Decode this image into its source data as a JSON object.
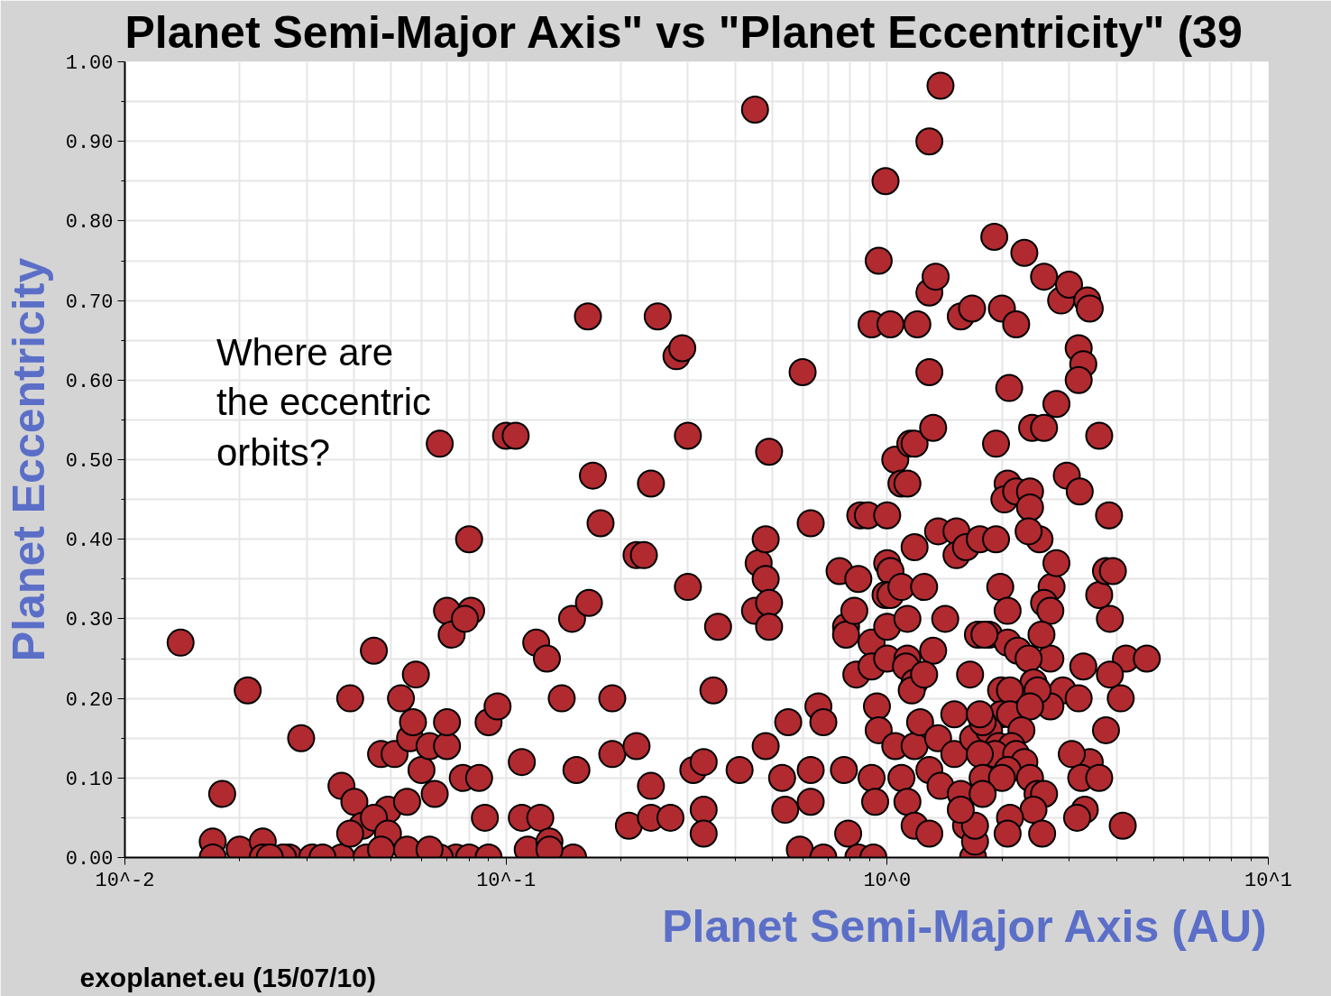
{
  "chart_data": {
    "type": "scatter",
    "title": "Planet Semi-Major Axis\"  vs \"Planet Eccentricity\" (39",
    "xlabel": "Planet Semi-Major Axis (AU)",
    "ylabel": "Planet Eccentricity",
    "annotations": [
      "Where are\nthe eccentric\norbits?",
      "exoplanet.eu (15/07/10)"
    ],
    "log": "x",
    "grid": true,
    "marker": "circle",
    "xlim": [
      0.01,
      10
    ],
    "ylim": [
      0,
      1
    ],
    "xticks": [
      {
        "value": 0.01,
        "label": "10^-2"
      },
      {
        "value": 0.1,
        "label": "10^-1"
      },
      {
        "value": 1,
        "label": "10^0"
      },
      {
        "value": 10,
        "label": "10^1"
      }
    ],
    "yticks": [
      {
        "value": 0,
        "label": "0.00"
      },
      {
        "value": 0.1,
        "label": "0.10"
      },
      {
        "value": 0.2,
        "label": "0.20"
      },
      {
        "value": 0.3,
        "label": "0.30"
      },
      {
        "value": 0.4,
        "label": "0.40"
      },
      {
        "value": 0.5,
        "label": "0.50"
      },
      {
        "value": 0.6,
        "label": "0.60"
      },
      {
        "value": 0.7,
        "label": "0.70"
      },
      {
        "value": 0.8,
        "label": "0.80"
      },
      {
        "value": 0.9,
        "label": "0.90"
      },
      {
        "value": 1,
        "label": "1.00"
      }
    ],
    "series": [
      {
        "color": "#b02a30",
        "x": [
          0.014,
          0.017,
          0.017,
          0.018,
          0.021,
          0.02,
          0.023,
          0.023,
          0.027,
          0.029,
          0.031,
          0.037,
          0.039,
          0.037,
          0.04,
          0.042,
          0.045,
          0.047,
          0.049,
          0.051,
          0.053,
          0.056,
          0.058,
          0.057,
          0.06,
          0.055,
          0.065,
          0.063,
          0.07,
          0.067,
          0.07,
          0.072,
          0.07,
          0.077,
          0.074,
          0.08,
          0.081,
          0.078,
          0.085,
          0.088,
          0.09,
          0.095,
          0.08,
          0.09,
          0.1,
          0.106,
          0.11,
          0.11,
          0.12,
          0.123,
          0.128,
          0.114,
          0.14,
          0.149,
          0.153,
          0.165,
          0.164,
          0.169,
          0.177,
          0.19,
          0.19,
          0.15,
          0.21,
          0.22,
          0.23,
          0.24,
          0.22,
          0.24,
          0.24,
          0.25,
          0.28,
          0.29,
          0.3,
          0.3,
          0.31,
          0.33,
          0.33,
          0.33,
          0.35,
          0.36,
          0.27,
          0.41,
          0.45,
          0.46,
          0.48,
          0.49,
          0.48,
          0.45,
          0.49,
          0.49,
          0.48,
          0.53,
          0.54,
          0.55,
          0.6,
          0.63,
          0.63,
          0.59,
          0.63,
          0.66,
          0.68,
          0.75,
          0.77,
          0.68,
          0.79,
          0.78,
          0.78,
          0.82,
          0.84,
          0.85,
          0.89,
          0.83,
          0.91,
          0.91,
          0.95,
          0.91,
          0.99,
          1.02,
          0.94,
          0.95,
          0.91,
          0.93,
          0.84,
          0.92,
          1.0,
          1.0,
          1.02,
          0.99,
          1.02,
          1.0,
          1.0,
          1.05,
          1.05,
          1.09,
          1.13,
          1.15,
          1.18,
          1.2,
          1.09,
          1.13,
          1.13,
          1.12,
          1.18,
          1.16,
          1.09,
          1.13,
          1.18,
          1.18,
          1.29,
          1.38,
          1.29,
          1.34,
          1.29,
          1.32,
          1.36,
          1.18,
          1.25,
          1.32,
          1.25,
          1.22,
          1.29,
          1.29,
          1.36,
          1.42,
          1.38,
          1.56,
          1.67,
          1.52,
          1.52,
          1.61,
          1.75,
          1.65,
          1.5,
          1.5,
          1.56,
          1.61,
          1.68,
          1.7,
          1.73,
          1.68,
          1.85,
          1.91,
          2.0,
          2.18,
          2.29,
          2.58,
          2.86,
          3.0,
          3.35,
          3.4,
          3.18,
          3.27,
          3.18,
          3.6,
          2.09,
          1.93,
          2.4,
          2.58,
          2.78,
          2.96,
          3.2,
          2.07,
          2.03,
          2.18,
          2.37,
          2.37,
          2.51,
          3.82,
          2.35,
          1.93,
          1.98,
          2.07,
          2.7,
          2.78,
          2.58,
          2.68,
          3.6,
          3.75,
          3.91,
          3.84,
          4.23,
          4.8,
          3.27,
          3.84,
          4.1,
          3.75,
          3.4,
          3.05,
          3.23,
          3.6,
          3.3,
          3.15,
          4.15,
          2.89,
          3.18,
          2.68,
          2.68,
          2.54,
          2.07,
          2.2,
          2.35,
          1.8,
          2.42,
          2.48,
          1.99,
          2.1,
          1.99,
          2.1,
          2.37,
          2.25,
          1.85,
          1.96,
          2.12,
          1.92,
          2.18,
          2.29,
          2.07,
          1.75,
          1.78,
          2.0,
          2.37,
          2.48,
          2.58,
          2.42,
          2.1,
          2.07,
          2.55,
          1.7,
          1.56,
          1.78,
          1.78,
          1.75,
          0.033,
          0.043,
          0.067,
          0.039,
          0.045,
          0.049,
          0.047,
          0.055,
          0.063,
          0.026,
          0.024,
          0.13,
          0.13
        ],
        "values": [
          0.27,
          0.02,
          0,
          0.08,
          0.21,
          0.01,
          0.02,
          0,
          0,
          0.15,
          0,
          0.09,
          0.2,
          0,
          0.07,
          0.04,
          0.26,
          0.13,
          0.06,
          0.13,
          0.2,
          0.15,
          0.23,
          0.17,
          0.11,
          0.07,
          0.08,
          0.14,
          0.14,
          0.52,
          0.31,
          0.28,
          0.17,
          0.1,
          0,
          0.4,
          0.31,
          0.3,
          0.1,
          0.05,
          0.17,
          0.19,
          0,
          0,
          0.53,
          0.53,
          0.12,
          0.05,
          0.27,
          0.05,
          0.25,
          0.01,
          0.2,
          0.3,
          0.11,
          0.32,
          0.68,
          0.48,
          0.42,
          0.13,
          0.2,
          0,
          0.04,
          0.38,
          0.38,
          0.47,
          0.14,
          0.09,
          0.05,
          0.68,
          0.63,
          0.64,
          0.53,
          0.34,
          0.11,
          0.12,
          0.06,
          0.03,
          0.21,
          0.29,
          0.05,
          0.11,
          0.94,
          0.37,
          0.35,
          0.51,
          0.4,
          0.31,
          0.32,
          0.29,
          0.14,
          0.1,
          0.06,
          0.17,
          0.61,
          0.42,
          0.11,
          0.01,
          0.07,
          0.19,
          0.17,
          0.36,
          0.11,
          0,
          0.03,
          0.29,
          0.28,
          0.31,
          0.35,
          0.43,
          0.43,
          0.23,
          0.27,
          0.24,
          0.75,
          0.67,
          0.85,
          0.67,
          0.19,
          0.16,
          0.1,
          0.07,
          0,
          0,
          0.43,
          0.37,
          0.36,
          0.33,
          0.33,
          0.29,
          0.25,
          0.14,
          0.5,
          0.47,
          0.47,
          0.52,
          0.52,
          0.67,
          0.34,
          0.3,
          0.25,
          0.24,
          0.22,
          0.21,
          0.1,
          0.07,
          0.14,
          0.04,
          0.9,
          0.97,
          0.71,
          0.73,
          0.61,
          0.54,
          0.41,
          0.39,
          0.34,
          0.26,
          0.23,
          0.17,
          0.11,
          0.03,
          0.15,
          0.3,
          0.09,
          0.68,
          0.69,
          0.41,
          0.38,
          0.39,
          0.4,
          0.23,
          0.18,
          0.13,
          0.08,
          0.04,
          0,
          0.02,
          0.28,
          0.15,
          0.28,
          0.78,
          0.69,
          0.67,
          0.76,
          0.73,
          0.7,
          0.72,
          0.7,
          0.69,
          0.64,
          0.62,
          0.6,
          0.53,
          0.59,
          0.52,
          0.54,
          0.54,
          0.57,
          0.48,
          0.46,
          0.47,
          0.45,
          0.46,
          0.46,
          0.44,
          0.4,
          0.43,
          0.41,
          0.4,
          0.34,
          0.31,
          0.34,
          0.37,
          0.32,
          0.31,
          0.33,
          0.36,
          0.36,
          0.3,
          0.25,
          0.25,
          0.24,
          0.23,
          0.2,
          0.16,
          0.12,
          0.13,
          0.1,
          0.1,
          0.06,
          0.05,
          0.04,
          0.21,
          0.2,
          0.19,
          0.25,
          0.28,
          0.27,
          0.26,
          0.25,
          0.28,
          0.22,
          0.21,
          0.21,
          0.21,
          0.18,
          0.18,
          0.19,
          0.16,
          0.16,
          0.14,
          0.14,
          0.13,
          0.13,
          0.12,
          0.11,
          0.13,
          0.1,
          0.1,
          0.1,
          0.08,
          0.08,
          0.06,
          0.05,
          0.03,
          0.03,
          0.04,
          0.06,
          0.08,
          0.17,
          0.18,
          0,
          0,
          0,
          0.03,
          0.05,
          0.03,
          0.01,
          0.01,
          0.01,
          0,
          0,
          0.02,
          0.01
        ]
      }
    ]
  }
}
